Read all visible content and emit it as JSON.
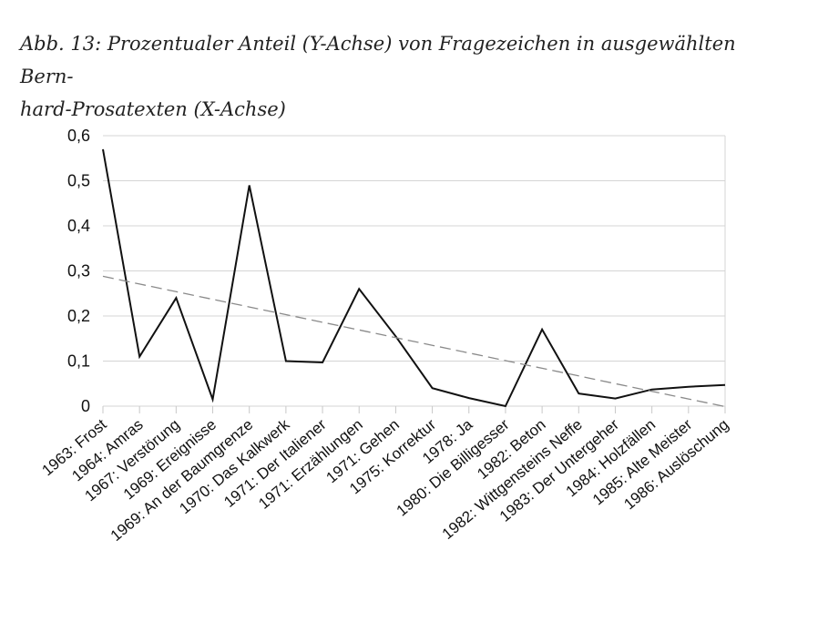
{
  "caption": {
    "line1": "Abb. 13:  Prozentualer Anteil (Y-Achse) von Fragezeichen in ausgewählten Bern-",
    "line2": "hard-Prosatexten (X-Achse)"
  },
  "chart_data": {
    "type": "line",
    "title": "",
    "xlabel": "",
    "ylabel": "",
    "ylim": [
      0,
      0.6
    ],
    "yticks": [
      "0",
      "0,1",
      "0,2",
      "0,3",
      "0,4",
      "0,5",
      "0,6"
    ],
    "grid": true,
    "categories": [
      "1963: Frost",
      "1964: Amras",
      "1967: Verstörung",
      "1969: Ereignisse",
      "1969: An der Baumgrenze",
      "1970: Das Kalkwerk",
      "1971: Der Italiener",
      "1971: Erzählungen",
      "1971: Gehen",
      "1975: Korrektur",
      "1978: Ja",
      "1980: Die Billigesser",
      "1982: Beton",
      "1982: Wittgensteins Neffe",
      "1983: Der Untergeher",
      "1984: Holzfällen",
      "1985: Alte Meister",
      "1986: Auslöschung"
    ],
    "series": [
      {
        "values": [
          0.57,
          0.11,
          0.24,
          0.015,
          0.49,
          0.1,
          0.097,
          0.26,
          0.155,
          0.04,
          0.018,
          0.0,
          0.17,
          0.028,
          0.017,
          0.037,
          0.043,
          0.047
        ],
        "color": "#111111",
        "style": "solid"
      },
      {
        "values": [
          0.288,
          0.271,
          0.254,
          0.237,
          0.22,
          0.203,
          0.186,
          0.169,
          0.152,
          0.135,
          0.118,
          0.101,
          0.084,
          0.067,
          0.05,
          0.033,
          0.016,
          -0.001
        ],
        "color": "#8a8a8a",
        "style": "dashed"
      }
    ]
  }
}
